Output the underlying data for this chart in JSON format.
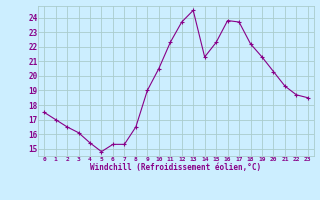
{
  "x": [
    0,
    1,
    2,
    3,
    4,
    5,
    6,
    7,
    8,
    9,
    10,
    11,
    12,
    13,
    14,
    15,
    16,
    17,
    18,
    19,
    20,
    21,
    22,
    23
  ],
  "y": [
    17.5,
    17.0,
    16.5,
    16.1,
    15.4,
    14.8,
    15.3,
    15.3,
    16.5,
    19.0,
    20.5,
    22.3,
    23.7,
    24.5,
    21.3,
    22.3,
    23.8,
    23.7,
    22.2,
    21.3,
    20.3,
    19.3,
    18.7,
    18.5
  ],
  "line_color": "#880088",
  "marker": "+",
  "marker_size": 3,
  "marker_lw": 0.8,
  "bg_color": "#cceeff",
  "grid_color": "#aacccc",
  "axis_label_color": "#880088",
  "tick_color": "#880088",
  "xlabel": "Windchill (Refroidissement éolien,°C)",
  "ylabel_ticks": [
    15,
    16,
    17,
    18,
    19,
    20,
    21,
    22,
    23,
    24
  ],
  "xlim": [
    -0.5,
    23.5
  ],
  "ylim": [
    14.5,
    24.8
  ],
  "xticks": [
    0,
    1,
    2,
    3,
    4,
    5,
    6,
    7,
    8,
    9,
    10,
    11,
    12,
    13,
    14,
    15,
    16,
    17,
    18,
    19,
    20,
    21,
    22,
    23
  ],
  "xtick_labels": [
    "0",
    "1",
    "2",
    "3",
    "4",
    "5",
    "6",
    "7",
    "8",
    "9",
    "10",
    "11",
    "12",
    "13",
    "14",
    "15",
    "16",
    "17",
    "18",
    "19",
    "20",
    "21",
    "22",
    "23"
  ]
}
